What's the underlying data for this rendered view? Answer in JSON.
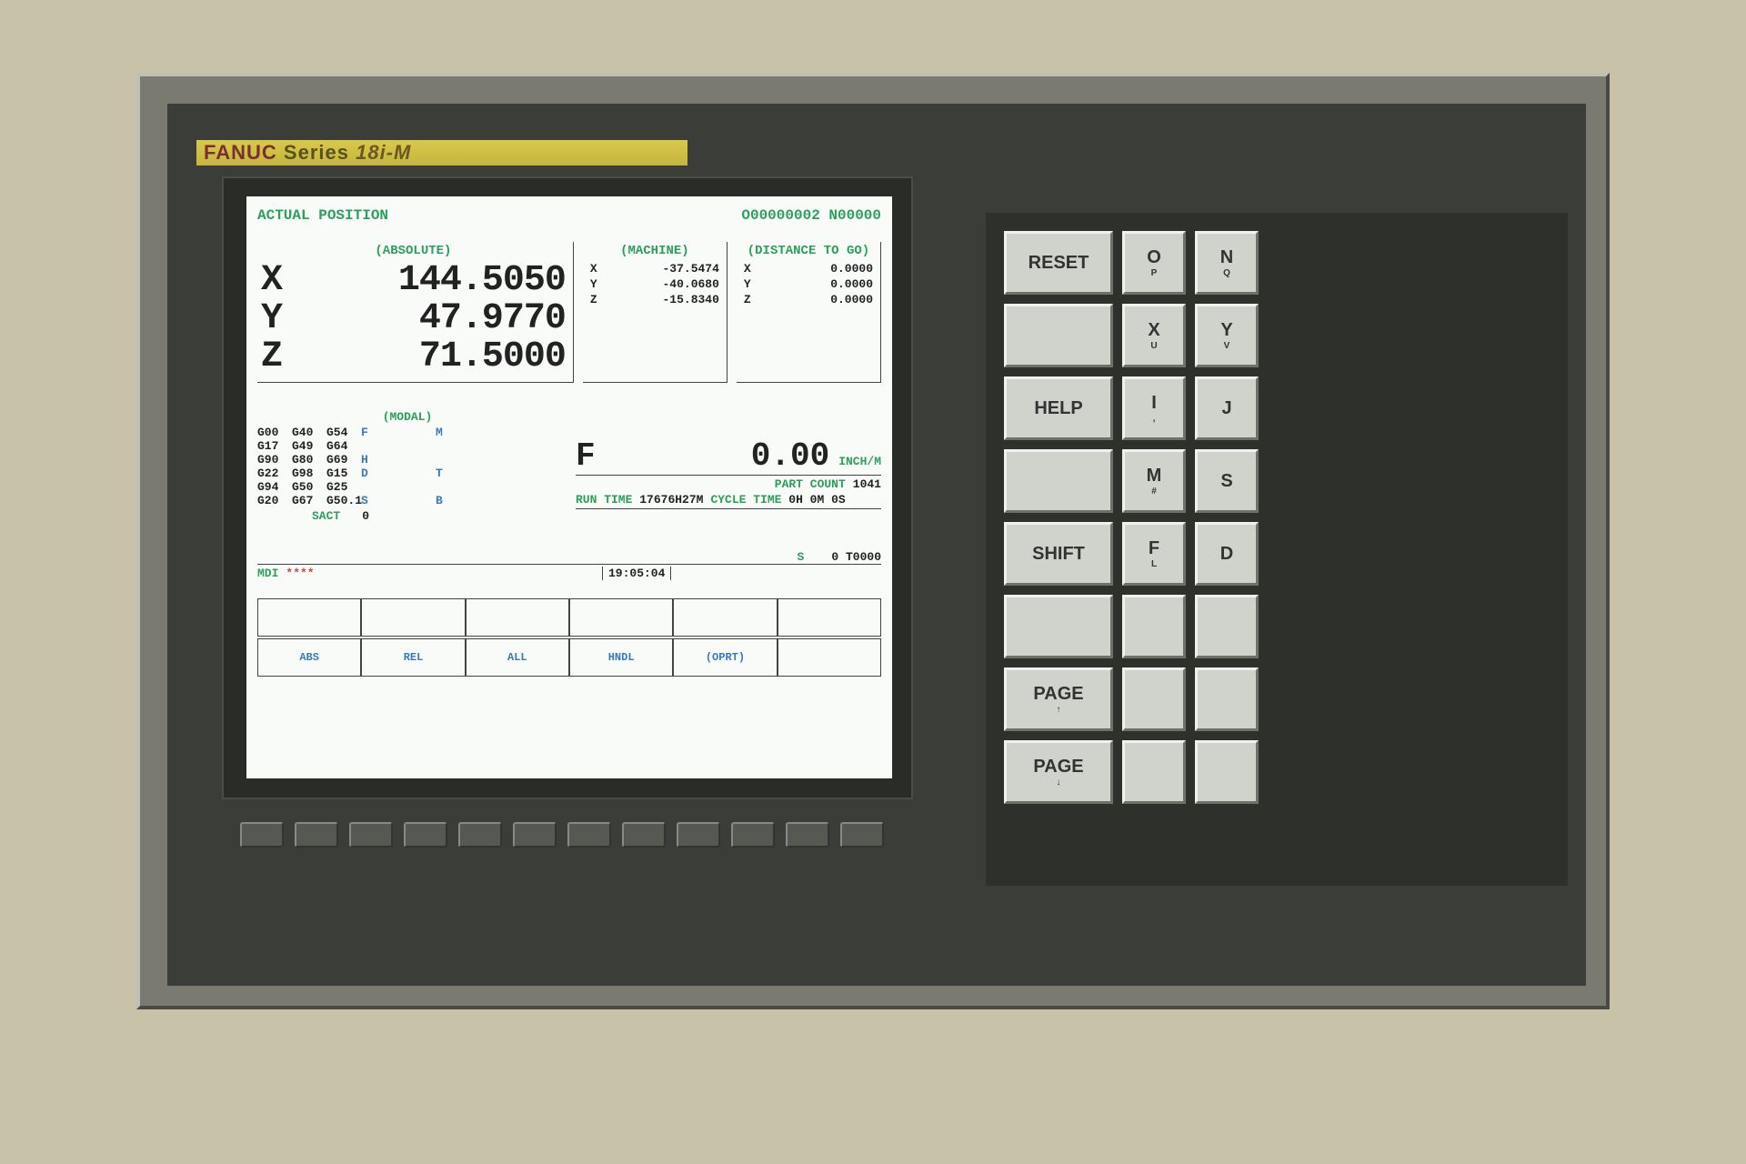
{
  "brand": {
    "name": "FANUC",
    "series": "Series",
    "model": "18i-M"
  },
  "header": {
    "title": "ACTUAL POSITION",
    "prog": "O00000002 N00000"
  },
  "absolute": {
    "title": "(ABSOLUTE)",
    "x": "144.5050",
    "y": " 47.9770",
    "z": " 71.5000"
  },
  "machine": {
    "title": "(MACHINE)",
    "x": "-37.5474",
    "y": "-40.0680",
    "z": "-15.8340"
  },
  "distance": {
    "title": "(DISTANCE TO GO)",
    "x": "0.0000",
    "y": "0.0000",
    "z": "0.0000"
  },
  "modal": {
    "title": "(MODAL)",
    "rows": [
      [
        "G00",
        "G40",
        "G54",
        "F",
        "",
        "M"
      ],
      [
        "G17",
        "G49",
        "G64",
        "",
        "",
        ""
      ],
      [
        "G90",
        "G80",
        "G69",
        "H",
        "",
        ""
      ],
      [
        "G22",
        "G98",
        "G15",
        "D",
        "",
        "T"
      ],
      [
        "G94",
        "G50",
        "G25",
        "",
        "",
        ""
      ],
      [
        "G20",
        "G67",
        "G50.1",
        "S",
        "",
        "B"
      ]
    ],
    "sact_label": "SACT",
    "sact_val": "0"
  },
  "feed": {
    "label": "F",
    "value": "0.00",
    "unit": "INCH/M"
  },
  "partcount": {
    "label": "PART COUNT",
    "value": "1041"
  },
  "runtime": {
    "label": "RUN TIME",
    "value": "17676H27M",
    "cycle_label": "CYCLE TIME",
    "cycle_value": "0H 0M 0S"
  },
  "status": {
    "s_label": "S",
    "s_val": "0",
    "t_val": "T0000"
  },
  "mdi": {
    "mode": "MDI",
    "stars": "****",
    "time": "19:05:04"
  },
  "softkeys2": [
    "ABS",
    "REL",
    "ALL",
    "HNDL",
    "(OPRT)",
    ""
  ],
  "keypad": [
    {
      "label": "RESET",
      "sub": ""
    },
    {
      "label": "O",
      "sub": "P"
    },
    {
      "label": "N",
      "sub": "Q"
    },
    {
      "label": "",
      "sub": ""
    },
    {
      "label": "X",
      "sub": "U"
    },
    {
      "label": "Y",
      "sub": "V"
    },
    {
      "label": "HELP",
      "sub": ""
    },
    {
      "label": "I",
      "sub": ","
    },
    {
      "label": "J",
      "sub": ""
    },
    {
      "label": "",
      "sub": ""
    },
    {
      "label": "M",
      "sub": "#"
    },
    {
      "label": "S",
      "sub": ""
    },
    {
      "label": "SHIFT",
      "sub": ""
    },
    {
      "label": "F",
      "sub": "L"
    },
    {
      "label": "D",
      "sub": ""
    },
    {
      "label": "",
      "sub": ""
    },
    {
      "label": "",
      "sub": ""
    },
    {
      "label": "",
      "sub": ""
    },
    {
      "label": "PAGE",
      "sub": "↑"
    },
    {
      "label": "",
      "sub": ""
    },
    {
      "label": "",
      "sub": ""
    },
    {
      "label": "PAGE",
      "sub": "↓"
    },
    {
      "label": "",
      "sub": ""
    },
    {
      "label": "",
      "sub": ""
    }
  ]
}
